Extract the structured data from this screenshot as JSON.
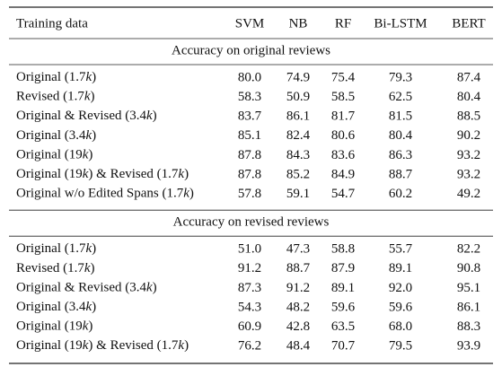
{
  "table": {
    "header": [
      "Training data",
      "SVM",
      "NB",
      "RF",
      "Bi-LSTM",
      "BERT"
    ],
    "sections": [
      {
        "title": "Accuracy on original reviews",
        "rows": [
          [
            "Original (1.7k)",
            "80.0",
            "74.9",
            "75.4",
            "79.3",
            "87.4"
          ],
          [
            "Revised (1.7k)",
            "58.3",
            "50.9",
            "58.5",
            "62.5",
            "80.4"
          ],
          [
            "Original & Revised (3.4k)",
            "83.7",
            "86.1",
            "81.7",
            "81.5",
            "88.5"
          ],
          [
            "Original (3.4k)",
            "85.1",
            "82.4",
            "80.6",
            "80.4",
            "90.2"
          ],
          [
            "Original (19k)",
            "87.8",
            "84.3",
            "83.6",
            "86.3",
            "93.2"
          ],
          [
            "Original (19k) & Revised (1.7k)",
            "87.8",
            "85.2",
            "84.9",
            "88.7",
            "93.2"
          ],
          [
            "Original w/o Edited Spans (1.7k)",
            "57.8",
            "59.1",
            "54.7",
            "60.2",
            "49.2"
          ]
        ]
      },
      {
        "title": "Accuracy on revised reviews",
        "rows": [
          [
            "Original (1.7k)",
            "51.0",
            "47.3",
            "58.8",
            "55.7",
            "82.2"
          ],
          [
            "Revised (1.7k)",
            "91.2",
            "88.7",
            "87.9",
            "89.1",
            "90.8"
          ],
          [
            "Original & Revised (3.4k)",
            "87.3",
            "91.2",
            "89.1",
            "92.0",
            "95.1"
          ],
          [
            "Original (3.4k)",
            "54.3",
            "48.2",
            "59.6",
            "59.6",
            "86.1"
          ],
          [
            "Original (19k)",
            "60.9",
            "42.8",
            "63.5",
            "68.0",
            "88.3"
          ],
          [
            "Original (19k) & Revised (1.7k)",
            "76.2",
            "48.4",
            "70.7",
            "79.5",
            "93.9"
          ]
        ]
      }
    ]
  }
}
